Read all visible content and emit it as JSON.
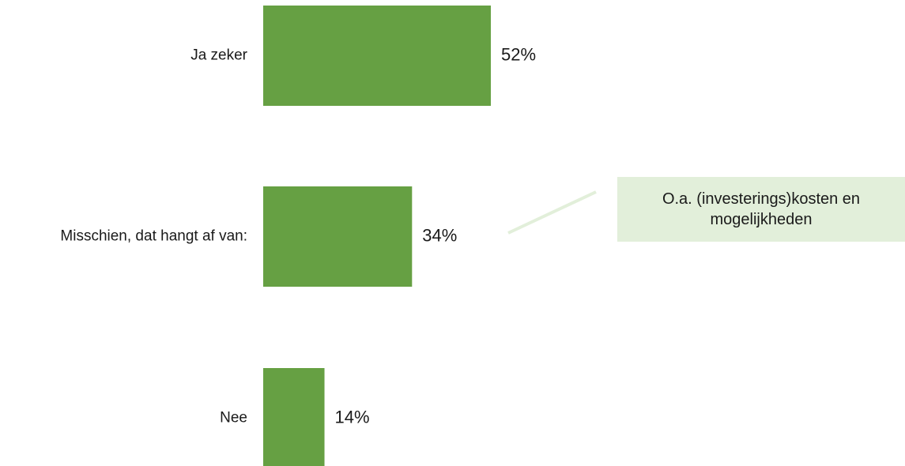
{
  "chart_data": {
    "type": "bar",
    "orientation": "horizontal",
    "categories": [
      "Ja zeker",
      "Misschien, dat hangt af van:",
      "Nee"
    ],
    "values": [
      52,
      34,
      14
    ],
    "value_labels": [
      "52%",
      "34%",
      "14%"
    ],
    "unit": "%",
    "title": "",
    "xlabel": "",
    "ylabel": "",
    "grid": false,
    "legend": "none",
    "bar_color": "#66a043",
    "annotations": [
      {
        "text": "O.a. (investerings)kosten en mogelijkheden",
        "target_category": "Misschien, dat hangt af van:",
        "fill": "#e2efda",
        "leader_color": "#e2efda"
      }
    ]
  }
}
